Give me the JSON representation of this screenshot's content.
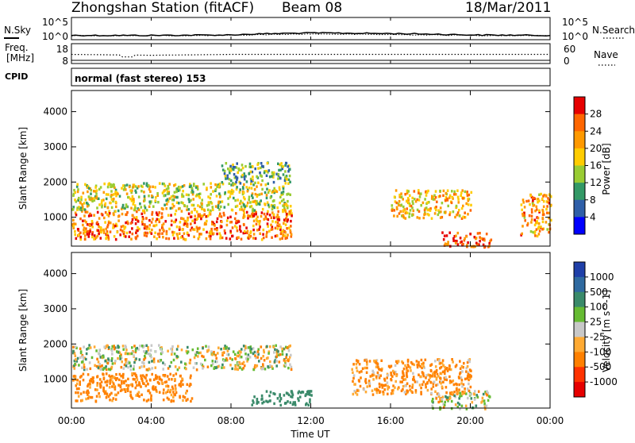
{
  "header": {
    "station": "Zhongshan Station (fitACF)",
    "beam": "Beam 08",
    "date": "18/Mar/2011"
  },
  "sky_panel": {
    "left_label": "N.Sky",
    "left_ticks": [
      "10^5",
      "10^0"
    ],
    "right_label": "N.Search",
    "right_ticks": [
      "10^5",
      "10^0"
    ]
  },
  "freq_panel": {
    "left_label_1": "Freq.",
    "left_label_2": "[MHz]",
    "left_ticks": [
      "18",
      "8"
    ],
    "right_label": "Nave",
    "right_ticks": [
      "60",
      "0"
    ]
  },
  "cpid_panel": {
    "label": "CPID",
    "text": "normal (fast stereo) 153"
  },
  "x_axis": {
    "ticks": [
      "00:00",
      "04:00",
      "08:00",
      "12:00",
      "16:00",
      "20:00",
      "00:00"
    ],
    "label": "Time UT"
  },
  "y_axis": {
    "label": "Slant Range [km]",
    "ticks": [
      "1000",
      "2000",
      "3000",
      "4000"
    ]
  },
  "power_colorbar": {
    "label": "Power [dB]",
    "ticks": [
      "28",
      "24",
      "20",
      "16",
      "12",
      "8",
      "4"
    ],
    "colors": [
      "#e60000",
      "#ff6600",
      "#ff9900",
      "#ffcc00",
      "#99cc33",
      "#339966",
      "#2f5fa8",
      "#0000ff"
    ]
  },
  "velocity_colorbar": {
    "label": "Velocity [m s^-1]",
    "ticks": [
      "1000",
      "500",
      "100",
      "25",
      "-25",
      "-100",
      "-500",
      "-1000"
    ],
    "colors": [
      "#1f3fa8",
      "#2f6aa0",
      "#3a8a6a",
      "#66bb33",
      "#c8c8c8",
      "#ffaa33",
      "#ff8000",
      "#ff3300",
      "#e60000"
    ]
  },
  "chart_data": [
    {
      "type": "line",
      "title": "Zhongshan Station (fitACF) Beam 08",
      "x": [
        "00:00",
        "04:00",
        "08:00",
        "12:00",
        "16:00",
        "20:00",
        "00:00"
      ],
      "series": [
        {
          "name": "N.Sky",
          "values": [
            6,
            6,
            8,
            30,
            20,
            8,
            6
          ]
        },
        {
          "name": "N.Search",
          "values": [
            5,
            5,
            6,
            15,
            10,
            6,
            5
          ]
        }
      ],
      "ylabel": "N.Sky"
    },
    {
      "type": "line",
      "x": [
        "00:00",
        "04:00",
        "08:00",
        "12:00",
        "16:00",
        "20:00",
        "00:00"
      ],
      "series": [
        {
          "name": "Freq.",
          "values": [
            12.5,
            12,
            12.5,
            12.5,
            12.5,
            12.5,
            12.5
          ]
        }
      ],
      "ylabel": "Freq. [MHz]",
      "ylim": [
        8,
        18
      ]
    },
    {
      "type": "heatmap",
      "xlabel": "Time UT",
      "ylabel": "Slant Range [km]",
      "xlim": [
        "00:00",
        "00:00"
      ],
      "ylim": [
        180,
        4600
      ],
      "colorbar": {
        "label": "Power [dB]",
        "ticks": [
          4,
          8,
          12,
          16,
          20,
          24,
          28
        ]
      },
      "regions": [
        {
          "t": [
            0,
            11
          ],
          "r": [
            1200,
            2000
          ],
          "value": 14
        },
        {
          "t": [
            0,
            11
          ],
          "r": [
            400,
            1200
          ],
          "value": 22
        },
        {
          "t": [
            7.5,
            11
          ],
          "r": [
            2000,
            2600
          ],
          "value": 10
        },
        {
          "t": [
            16,
            20
          ],
          "r": [
            1000,
            1800
          ],
          "value": 18
        },
        {
          "t": [
            18.5,
            21
          ],
          "r": [
            180,
            600
          ],
          "value": 26
        },
        {
          "t": [
            22.5,
            24
          ],
          "r": [
            500,
            1700
          ],
          "value": 20
        }
      ]
    },
    {
      "type": "heatmap",
      "xlabel": "Time UT",
      "ylabel": "Slant Range [km]",
      "xlim": [
        "00:00",
        "00:00"
      ],
      "ylim": [
        180,
        4600
      ],
      "colorbar": {
        "label": "Velocity [m s^-1]",
        "ticks": [
          1000,
          500,
          100,
          25,
          -25,
          -100,
          -500,
          -1000
        ]
      },
      "regions": [
        {
          "t": [
            0,
            11
          ],
          "r": [
            1300,
            2000
          ],
          "value": 0
        },
        {
          "t": [
            0,
            6
          ],
          "r": [
            400,
            1200
          ],
          "value": -200
        },
        {
          "t": [
            14,
            20
          ],
          "r": [
            600,
            1600
          ],
          "value": -150
        },
        {
          "t": [
            18,
            21
          ],
          "r": [
            180,
            700
          ],
          "value": 0
        },
        {
          "t": [
            9,
            12
          ],
          "r": [
            300,
            700
          ],
          "value": 300
        }
      ]
    }
  ]
}
